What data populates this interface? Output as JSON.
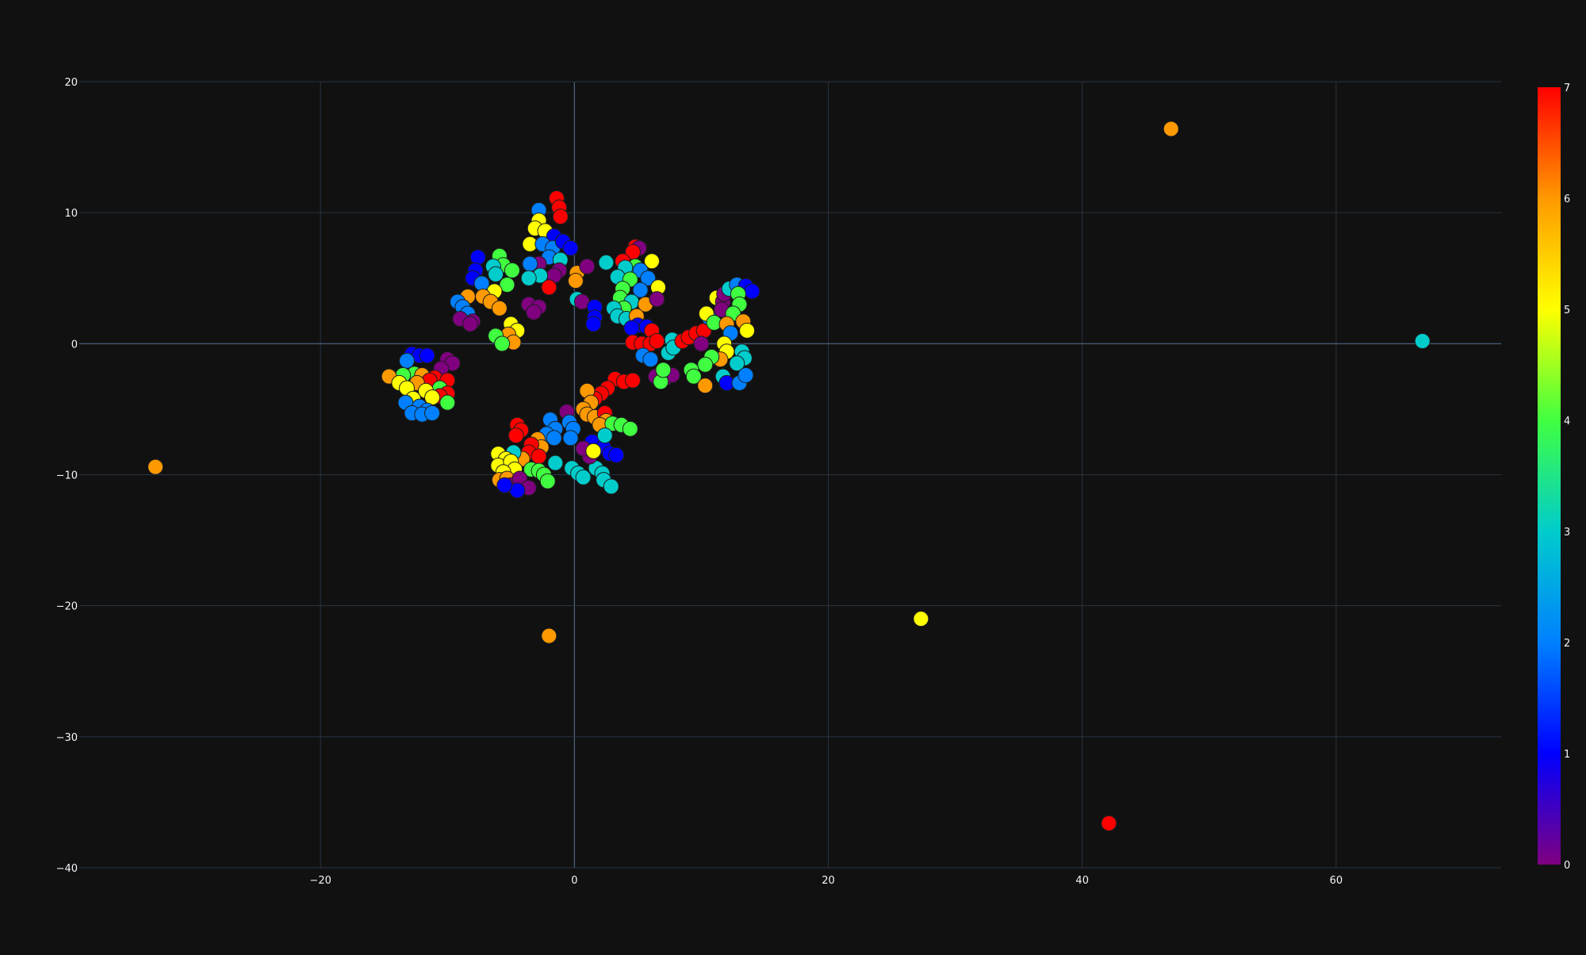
{
  "chart_data": {
    "type": "scatter",
    "title": "",
    "xlabel": "",
    "ylabel": "",
    "xlim": [
      -39,
      73
    ],
    "ylim": [
      -40,
      20
    ],
    "x_ticks": [
      -20,
      0,
      20,
      40,
      60
    ],
    "y_ticks": [
      -40,
      -30,
      -20,
      -10,
      0,
      10,
      20
    ],
    "x_tick_labels": [
      "−20",
      "0",
      "20",
      "40",
      "60"
    ],
    "y_tick_labels": [
      "−40",
      "−30",
      "−20",
      "−10",
      "0",
      "10",
      "20"
    ],
    "grid": true,
    "colorbar": {
      "min": 0,
      "max": 7,
      "ticks": [
        0,
        1,
        2,
        3,
        4,
        5,
        6,
        7
      ],
      "tick_labels": [
        "0",
        "1",
        "2",
        "3",
        "4",
        "5",
        "6",
        "7"
      ],
      "colorscale": [
        "#800080",
        "#0000ff",
        "#0080ff",
        "#00cccc",
        "#40ff40",
        "#ffff00",
        "#ff9900",
        "#ff0000"
      ]
    },
    "points": [
      {
        "x": 47.0,
        "y": 16.4,
        "c": 6
      },
      {
        "x": 66.8,
        "y": 0.2,
        "c": 3
      },
      {
        "x": -33.0,
        "y": -9.4,
        "c": 6
      },
      {
        "x": 27.3,
        "y": -21.0,
        "c": 5
      },
      {
        "x": -2.0,
        "y": -22.3,
        "c": 6
      },
      {
        "x": 42.1,
        "y": -36.6,
        "c": 7
      },
      {
        "x": -1.4,
        "y": 11.1,
        "c": 7
      },
      {
        "x": -1.2,
        "y": 10.4,
        "c": 7
      },
      {
        "x": -1.1,
        "y": 9.7,
        "c": 7
      },
      {
        "x": -2.8,
        "y": 10.2,
        "c": 2
      },
      {
        "x": -2.8,
        "y": 9.4,
        "c": 5
      },
      {
        "x": -3.1,
        "y": 8.8,
        "c": 5
      },
      {
        "x": -2.3,
        "y": 8.6,
        "c": 5
      },
      {
        "x": -1.6,
        "y": 8.2,
        "c": 1
      },
      {
        "x": -3.5,
        "y": 7.6,
        "c": 5
      },
      {
        "x": -2.5,
        "y": 7.6,
        "c": 2
      },
      {
        "x": -1.7,
        "y": 7.3,
        "c": 2
      },
      {
        "x": -0.9,
        "y": 7.8,
        "c": 1
      },
      {
        "x": -0.3,
        "y": 7.3,
        "c": 1
      },
      {
        "x": -2.0,
        "y": 6.6,
        "c": 2
      },
      {
        "x": -1.1,
        "y": 6.4,
        "c": 3
      },
      {
        "x": -2.8,
        "y": 6.1,
        "c": 0
      },
      {
        "x": -3.5,
        "y": 6.1,
        "c": 2
      },
      {
        "x": -1.2,
        "y": 5.6,
        "c": 0
      },
      {
        "x": 0.2,
        "y": 5.4,
        "c": 6
      },
      {
        "x": 0.1,
        "y": 4.8,
        "c": 6
      },
      {
        "x": -1.6,
        "y": 5.2,
        "c": 0
      },
      {
        "x": -2.7,
        "y": 5.2,
        "c": 3
      },
      {
        "x": -3.6,
        "y": 5.0,
        "c": 3
      },
      {
        "x": -2.0,
        "y": 4.3,
        "c": 7
      },
      {
        "x": 1.0,
        "y": 5.9,
        "c": 0
      },
      {
        "x": 2.5,
        "y": 6.2,
        "c": 3
      },
      {
        "x": 0.2,
        "y": 3.4,
        "c": 3
      },
      {
        "x": 0.6,
        "y": 3.2,
        "c": 0
      },
      {
        "x": 1.6,
        "y": 2.8,
        "c": 1
      },
      {
        "x": 1.6,
        "y": 2.0,
        "c": 1
      },
      {
        "x": 1.5,
        "y": 1.5,
        "c": 1
      },
      {
        "x": -7.6,
        "y": 6.6,
        "c": 1
      },
      {
        "x": -5.9,
        "y": 6.7,
        "c": 4
      },
      {
        "x": -5.6,
        "y": 6.0,
        "c": 4
      },
      {
        "x": -4.9,
        "y": 5.6,
        "c": 4
      },
      {
        "x": -6.4,
        "y": 5.9,
        "c": 3
      },
      {
        "x": -6.2,
        "y": 5.3,
        "c": 3
      },
      {
        "x": -7.8,
        "y": 5.6,
        "c": 1
      },
      {
        "x": -8.0,
        "y": 5.0,
        "c": 1
      },
      {
        "x": -7.3,
        "y": 4.6,
        "c": 2
      },
      {
        "x": -5.3,
        "y": 4.5,
        "c": 4
      },
      {
        "x": -6.3,
        "y": 4.0,
        "c": 5
      },
      {
        "x": -8.4,
        "y": 3.6,
        "c": 6
      },
      {
        "x": -7.2,
        "y": 3.6,
        "c": 6
      },
      {
        "x": -6.6,
        "y": 3.2,
        "c": 6
      },
      {
        "x": -9.2,
        "y": 3.2,
        "c": 2
      },
      {
        "x": -8.8,
        "y": 2.8,
        "c": 2
      },
      {
        "x": -5.9,
        "y": 2.7,
        "c": 6
      },
      {
        "x": -8.4,
        "y": 2.3,
        "c": 2
      },
      {
        "x": -8.0,
        "y": 1.7,
        "c": 0
      },
      {
        "x": -9.0,
        "y": 1.9,
        "c": 0
      },
      {
        "x": -8.2,
        "y": 1.5,
        "c": 0
      },
      {
        "x": -3.6,
        "y": 3.0,
        "c": 0
      },
      {
        "x": -2.8,
        "y": 2.8,
        "c": 0
      },
      {
        "x": -3.2,
        "y": 2.4,
        "c": 0
      },
      {
        "x": -5.0,
        "y": 1.5,
        "c": 5
      },
      {
        "x": -4.5,
        "y": 1.0,
        "c": 5
      },
      {
        "x": -5.2,
        "y": 0.7,
        "c": 6
      },
      {
        "x": -4.8,
        "y": 0.1,
        "c": 6
      },
      {
        "x": -6.2,
        "y": 0.6,
        "c": 4
      },
      {
        "x": -5.7,
        "y": 0.0,
        "c": 4
      },
      {
        "x": 4.8,
        "y": 7.4,
        "c": 7
      },
      {
        "x": 5.1,
        "y": 7.3,
        "c": 0
      },
      {
        "x": 4.6,
        "y": 7.0,
        "c": 7
      },
      {
        "x": 3.8,
        "y": 6.3,
        "c": 7
      },
      {
        "x": 6.1,
        "y": 6.3,
        "c": 5
      },
      {
        "x": 4.8,
        "y": 5.9,
        "c": 4
      },
      {
        "x": 4.0,
        "y": 5.8,
        "c": 3
      },
      {
        "x": 5.2,
        "y": 5.6,
        "c": 2
      },
      {
        "x": 3.4,
        "y": 5.1,
        "c": 3
      },
      {
        "x": 4.4,
        "y": 4.9,
        "c": 4
      },
      {
        "x": 5.8,
        "y": 5.0,
        "c": 2
      },
      {
        "x": 3.8,
        "y": 4.2,
        "c": 4
      },
      {
        "x": 5.2,
        "y": 4.1,
        "c": 2
      },
      {
        "x": 6.6,
        "y": 4.3,
        "c": 5
      },
      {
        "x": 3.6,
        "y": 3.5,
        "c": 4
      },
      {
        "x": 4.5,
        "y": 3.2,
        "c": 3
      },
      {
        "x": 5.6,
        "y": 3.0,
        "c": 6
      },
      {
        "x": 6.5,
        "y": 3.4,
        "c": 0
      },
      {
        "x": 3.9,
        "y": 2.7,
        "c": 4
      },
      {
        "x": 3.1,
        "y": 2.7,
        "c": 3
      },
      {
        "x": 3.4,
        "y": 2.1,
        "c": 3
      },
      {
        "x": 4.1,
        "y": 1.9,
        "c": 3
      },
      {
        "x": 4.9,
        "y": 2.1,
        "c": 6
      },
      {
        "x": 5.0,
        "y": 1.4,
        "c": 1
      },
      {
        "x": 4.5,
        "y": 1.2,
        "c": 1
      },
      {
        "x": 5.7,
        "y": 1.3,
        "c": 1
      },
      {
        "x": 6.1,
        "y": 1.0,
        "c": 7
      },
      {
        "x": 4.6,
        "y": 0.1,
        "c": 7
      },
      {
        "x": 5.3,
        "y": 0.0,
        "c": 7
      },
      {
        "x": 6.0,
        "y": 0.0,
        "c": 7
      },
      {
        "x": 6.5,
        "y": 0.2,
        "c": 7
      },
      {
        "x": 5.4,
        "y": -0.9,
        "c": 2
      },
      {
        "x": 6.0,
        "y": -1.2,
        "c": 2
      },
      {
        "x": 7.4,
        "y": -0.7,
        "c": 3
      },
      {
        "x": 7.7,
        "y": 0.3,
        "c": 3
      },
      {
        "x": 7.8,
        "y": -0.3,
        "c": 3
      },
      {
        "x": 6.4,
        "y": -2.5,
        "c": 0
      },
      {
        "x": 7.2,
        "y": -2.6,
        "c": 0
      },
      {
        "x": 7.7,
        "y": -2.4,
        "c": 0
      },
      {
        "x": 6.8,
        "y": -2.9,
        "c": 4
      },
      {
        "x": 7.0,
        "y": -2.0,
        "c": 4
      },
      {
        "x": 8.5,
        "y": 0.2,
        "c": 7
      },
      {
        "x": 9.0,
        "y": 0.5,
        "c": 7
      },
      {
        "x": 9.6,
        "y": 0.8,
        "c": 7
      },
      {
        "x": 10.2,
        "y": 1.0,
        "c": 7
      },
      {
        "x": 10.6,
        "y": 2.0,
        "c": 2
      },
      {
        "x": 10.4,
        "y": 2.3,
        "c": 5
      },
      {
        "x": 11.2,
        "y": 3.5,
        "c": 5
      },
      {
        "x": 11.7,
        "y": 3.2,
        "c": 0
      },
      {
        "x": 11.6,
        "y": 2.6,
        "c": 0
      },
      {
        "x": 11.8,
        "y": 3.8,
        "c": 0
      },
      {
        "x": 12.2,
        "y": 4.2,
        "c": 3
      },
      {
        "x": 12.8,
        "y": 4.5,
        "c": 2
      },
      {
        "x": 13.5,
        "y": 4.4,
        "c": 1
      },
      {
        "x": 14.0,
        "y": 4.0,
        "c": 1
      },
      {
        "x": 12.9,
        "y": 3.8,
        "c": 4
      },
      {
        "x": 13.0,
        "y": 3.0,
        "c": 4
      },
      {
        "x": 12.5,
        "y": 2.3,
        "c": 4
      },
      {
        "x": 13.3,
        "y": 1.7,
        "c": 6
      },
      {
        "x": 13.6,
        "y": 1.0,
        "c": 5
      },
      {
        "x": 11.0,
        "y": 1.6,
        "c": 4
      },
      {
        "x": 12.0,
        "y": 1.5,
        "c": 6
      },
      {
        "x": 12.3,
        "y": 0.8,
        "c": 2
      },
      {
        "x": 11.8,
        "y": 0.0,
        "c": 5
      },
      {
        "x": 12.0,
        "y": -0.6,
        "c": 5
      },
      {
        "x": 13.2,
        "y": -0.6,
        "c": 3
      },
      {
        "x": 13.4,
        "y": -1.1,
        "c": 3
      },
      {
        "x": 12.8,
        "y": -1.5,
        "c": 3
      },
      {
        "x": 11.5,
        "y": -1.2,
        "c": 6
      },
      {
        "x": 10.8,
        "y": -1.0,
        "c": 4
      },
      {
        "x": 10.3,
        "y": -1.6,
        "c": 4
      },
      {
        "x": 9.2,
        "y": -2.0,
        "c": 4
      },
      {
        "x": 9.4,
        "y": -2.5,
        "c": 4
      },
      {
        "x": 11.7,
        "y": -2.5,
        "c": 3
      },
      {
        "x": 12.0,
        "y": -3.0,
        "c": 1
      },
      {
        "x": 13.0,
        "y": -3.0,
        "c": 2
      },
      {
        "x": 13.5,
        "y": -2.4,
        "c": 2
      },
      {
        "x": 10.3,
        "y": -3.2,
        "c": 6
      },
      {
        "x": 10.0,
        "y": 0.0,
        "c": 0
      },
      {
        "x": -12.8,
        "y": -0.8,
        "c": 1
      },
      {
        "x": -12.2,
        "y": -0.9,
        "c": 1
      },
      {
        "x": -11.6,
        "y": -0.9,
        "c": 1
      },
      {
        "x": -13.2,
        "y": -1.3,
        "c": 2
      },
      {
        "x": -10.0,
        "y": -1.2,
        "c": 0
      },
      {
        "x": -9.6,
        "y": -1.5,
        "c": 0
      },
      {
        "x": -10.5,
        "y": -1.9,
        "c": 0
      },
      {
        "x": -12.6,
        "y": -2.3,
        "c": 4
      },
      {
        "x": -13.5,
        "y": -2.4,
        "c": 4
      },
      {
        "x": -14.6,
        "y": -2.5,
        "c": 6
      },
      {
        "x": -12.0,
        "y": -2.4,
        "c": 6
      },
      {
        "x": -11.0,
        "y": -2.6,
        "c": 7
      },
      {
        "x": -10.0,
        "y": -2.8,
        "c": 7
      },
      {
        "x": -11.4,
        "y": -2.8,
        "c": 7
      },
      {
        "x": -13.8,
        "y": -3.0,
        "c": 5
      },
      {
        "x": -12.4,
        "y": -3.0,
        "c": 6
      },
      {
        "x": -10.6,
        "y": -3.4,
        "c": 4
      },
      {
        "x": -13.2,
        "y": -3.4,
        "c": 5
      },
      {
        "x": -11.7,
        "y": -3.6,
        "c": 5
      },
      {
        "x": -10.0,
        "y": -3.8,
        "c": 7
      },
      {
        "x": -10.6,
        "y": -4.0,
        "c": 7
      },
      {
        "x": -12.7,
        "y": -4.2,
        "c": 5
      },
      {
        "x": -11.2,
        "y": -4.1,
        "c": 5
      },
      {
        "x": -10.0,
        "y": -4.5,
        "c": 4
      },
      {
        "x": -13.3,
        "y": -4.5,
        "c": 2
      },
      {
        "x": -12.2,
        "y": -4.8,
        "c": 2
      },
      {
        "x": -11.6,
        "y": -5.1,
        "c": 2
      },
      {
        "x": -12.8,
        "y": -5.3,
        "c": 2
      },
      {
        "x": -12.0,
        "y": -5.4,
        "c": 2
      },
      {
        "x": -11.2,
        "y": -5.3,
        "c": 2
      },
      {
        "x": 3.2,
        "y": -2.7,
        "c": 7
      },
      {
        "x": 3.9,
        "y": -2.9,
        "c": 7
      },
      {
        "x": 4.6,
        "y": -2.8,
        "c": 7
      },
      {
        "x": 2.6,
        "y": -3.4,
        "c": 7
      },
      {
        "x": 2.1,
        "y": -3.8,
        "c": 7
      },
      {
        "x": 1.6,
        "y": -4.2,
        "c": 7
      },
      {
        "x": 1.0,
        "y": -3.6,
        "c": 6
      },
      {
        "x": 1.3,
        "y": -4.5,
        "c": 6
      },
      {
        "x": 0.7,
        "y": -5.0,
        "c": 6
      },
      {
        "x": 1.0,
        "y": -5.4,
        "c": 6
      },
      {
        "x": 1.6,
        "y": -5.6,
        "c": 6
      },
      {
        "x": 2.4,
        "y": -5.3,
        "c": 7
      },
      {
        "x": 2.5,
        "y": -5.9,
        "c": 6
      },
      {
        "x": 2.0,
        "y": -6.2,
        "c": 6
      },
      {
        "x": -0.6,
        "y": -5.2,
        "c": 0
      },
      {
        "x": 3.0,
        "y": -6.1,
        "c": 4
      },
      {
        "x": 3.7,
        "y": -6.2,
        "c": 4
      },
      {
        "x": 4.4,
        "y": -6.5,
        "c": 4
      },
      {
        "x": -1.9,
        "y": -5.8,
        "c": 2
      },
      {
        "x": -0.4,
        "y": -6.0,
        "c": 2
      },
      {
        "x": -0.1,
        "y": -6.5,
        "c": 2
      },
      {
        "x": -1.5,
        "y": -6.5,
        "c": 2
      },
      {
        "x": -2.2,
        "y": -6.9,
        "c": 2
      },
      {
        "x": -1.6,
        "y": -7.2,
        "c": 2
      },
      {
        "x": -0.3,
        "y": -7.2,
        "c": 2
      },
      {
        "x": -2.9,
        "y": -7.3,
        "c": 6
      },
      {
        "x": -2.6,
        "y": -7.9,
        "c": 6
      },
      {
        "x": -3.4,
        "y": -7.7,
        "c": 7
      },
      {
        "x": -4.5,
        "y": -6.2,
        "c": 7
      },
      {
        "x": -4.2,
        "y": -6.6,
        "c": 7
      },
      {
        "x": -4.6,
        "y": -7.0,
        "c": 7
      },
      {
        "x": -3.6,
        "y": -8.3,
        "c": 7
      },
      {
        "x": -2.8,
        "y": -8.6,
        "c": 7
      },
      {
        "x": -4.1,
        "y": -8.8,
        "c": 6
      },
      {
        "x": -4.8,
        "y": -8.3,
        "c": 3
      },
      {
        "x": -6.0,
        "y": -8.4,
        "c": 5
      },
      {
        "x": -5.4,
        "y": -8.8,
        "c": 5
      },
      {
        "x": -6.0,
        "y": -9.3,
        "c": 5
      },
      {
        "x": -5.0,
        "y": -9.0,
        "c": 5
      },
      {
        "x": -4.7,
        "y": -9.6,
        "c": 5
      },
      {
        "x": -5.6,
        "y": -9.8,
        "c": 5
      },
      {
        "x": -3.4,
        "y": -9.6,
        "c": 4
      },
      {
        "x": -2.8,
        "y": -9.7,
        "c": 4
      },
      {
        "x": -2.4,
        "y": -10.0,
        "c": 4
      },
      {
        "x": -2.1,
        "y": -10.5,
        "c": 4
      },
      {
        "x": -1.5,
        "y": -9.1,
        "c": 3
      },
      {
        "x": -0.2,
        "y": -9.5,
        "c": 3
      },
      {
        "x": 0.3,
        "y": -9.9,
        "c": 3
      },
      {
        "x": 0.7,
        "y": -10.2,
        "c": 3
      },
      {
        "x": 1.7,
        "y": -9.5,
        "c": 3
      },
      {
        "x": 2.2,
        "y": -9.9,
        "c": 3
      },
      {
        "x": 2.3,
        "y": -10.4,
        "c": 3
      },
      {
        "x": 2.9,
        "y": -10.9,
        "c": 3
      },
      {
        "x": 1.4,
        "y": -7.5,
        "c": 1
      },
      {
        "x": 2.3,
        "y": -7.9,
        "c": 1
      },
      {
        "x": 2.8,
        "y": -8.4,
        "c": 1
      },
      {
        "x": 3.3,
        "y": -8.5,
        "c": 1
      },
      {
        "x": 1.2,
        "y": -8.6,
        "c": 0
      },
      {
        "x": 0.7,
        "y": -8.0,
        "c": 0
      },
      {
        "x": 2.4,
        "y": -7.0,
        "c": 3
      },
      {
        "x": 1.5,
        "y": -8.2,
        "c": 5
      },
      {
        "x": -5.9,
        "y": -10.4,
        "c": 6
      },
      {
        "x": -5.3,
        "y": -10.3,
        "c": 6
      },
      {
        "x": -5.0,
        "y": -10.8,
        "c": 0
      },
      {
        "x": -4.3,
        "y": -10.3,
        "c": 0
      },
      {
        "x": -3.6,
        "y": -11.0,
        "c": 0
      },
      {
        "x": -4.5,
        "y": -11.2,
        "c": 1
      },
      {
        "x": -5.5,
        "y": -10.8,
        "c": 1
      }
    ]
  }
}
